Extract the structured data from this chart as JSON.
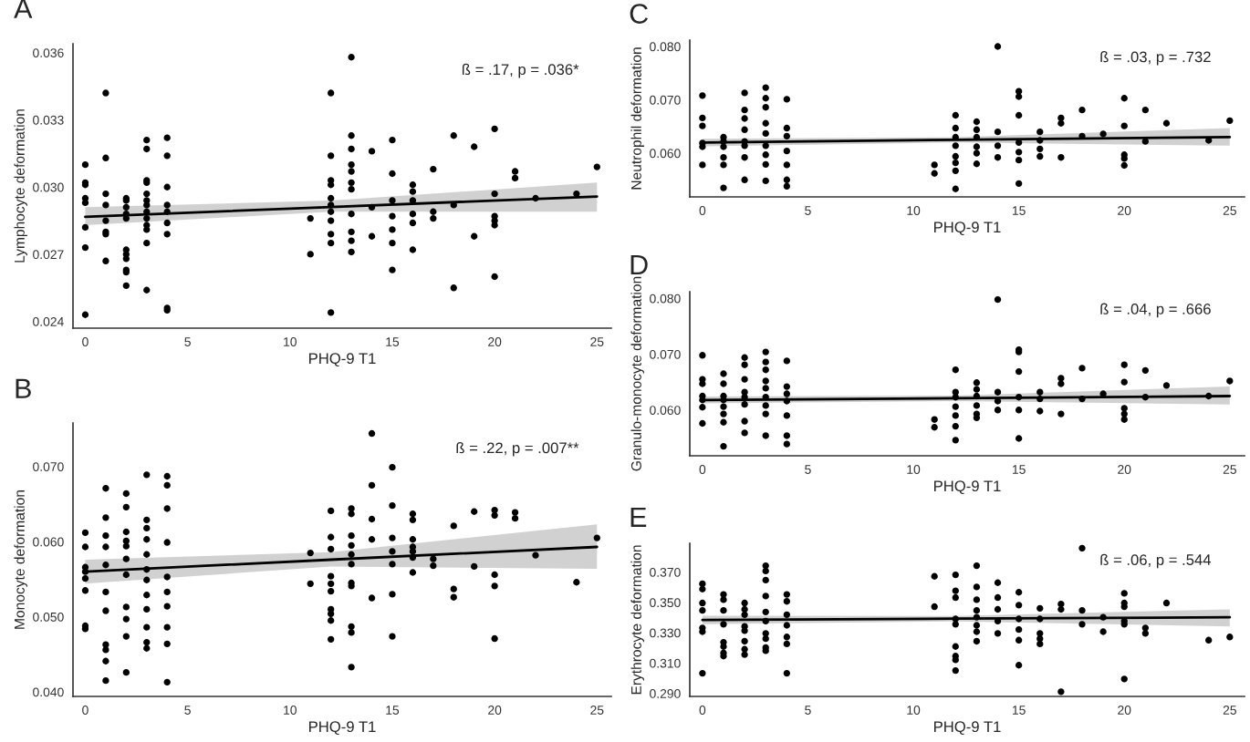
{
  "chart_data": [
    {
      "type": "scatter",
      "title": "A",
      "xlabel": "PHQ-9 T1",
      "ylabel": "Lymphocyte deformation",
      "annotations": [
        "ß = .17, p = .036*"
      ],
      "grid": false,
      "marker": "circle",
      "xlim": [
        -0.6,
        25.7
      ],
      "xticks": [
        0,
        5,
        10,
        15,
        20,
        25
      ],
      "ylim": [
        0.0237,
        0.0364
      ],
      "yticks": [
        {
          "value": 0.024,
          "label": "0.024"
        },
        {
          "value": 0.027,
          "label": "0.027"
        },
        {
          "value": 0.03,
          "label": "0.030"
        },
        {
          "value": 0.033,
          "label": "0.033"
        },
        {
          "value": 0.036,
          "label": "0.036"
        }
      ],
      "series": [
        {
          "color": "#000000",
          "x": [
            0,
            0,
            0,
            0,
            0,
            0,
            0,
            0,
            1,
            1,
            1,
            1,
            1,
            1,
            1,
            1,
            2,
            2,
            2,
            2,
            2,
            2,
            2,
            2,
            2,
            2,
            2,
            3,
            3,
            3,
            3,
            3,
            3,
            3,
            3,
            3,
            3,
            3,
            3,
            3,
            4,
            4,
            4,
            4,
            4,
            4,
            4,
            4,
            4,
            11,
            11,
            12,
            12,
            12,
            12,
            12,
            12,
            12,
            12,
            12,
            12,
            12,
            13,
            13,
            13,
            13,
            13,
            13,
            13,
            13,
            13,
            13,
            13,
            14,
            14,
            14,
            15,
            15,
            15,
            15,
            15,
            15,
            15,
            16,
            16,
            16,
            16,
            16,
            16,
            17,
            17,
            17,
            18,
            18,
            18,
            19,
            19,
            20,
            20,
            20,
            20,
            20,
            20,
            21,
            21,
            22,
            24,
            25
          ],
          "values": [
            0.031,
            0.0302,
            0.0301,
            0.0295,
            0.0293,
            0.0282,
            0.0273,
            0.0243,
            0.0342,
            0.0313,
            0.0297,
            0.0292,
            0.0285,
            0.028,
            0.0279,
            0.0267,
            0.0295,
            0.0294,
            0.0291,
            0.0288,
            0.0286,
            0.0272,
            0.027,
            0.0268,
            0.0263,
            0.0262,
            0.0256,
            0.0321,
            0.0317,
            0.0303,
            0.0302,
            0.0297,
            0.0294,
            0.0292,
            0.0289,
            0.0286,
            0.0283,
            0.0281,
            0.0275,
            0.0254,
            0.0322,
            0.0314,
            0.03,
            0.0292,
            0.0289,
            0.0284,
            0.0279,
            0.0246,
            0.0245,
            0.0286,
            0.027,
            0.0342,
            0.0314,
            0.0303,
            0.0301,
            0.0295,
            0.0292,
            0.0289,
            0.0285,
            0.0279,
            0.0275,
            0.0244,
            0.0358,
            0.0323,
            0.0317,
            0.031,
            0.0307,
            0.0302,
            0.0299,
            0.0288,
            0.028,
            0.0276,
            0.0271,
            0.0316,
            0.0291,
            0.0278,
            0.0321,
            0.0306,
            0.0294,
            0.0287,
            0.0281,
            0.0275,
            0.0263,
            0.0301,
            0.0298,
            0.0294,
            0.0288,
            0.0284,
            0.0272,
            0.0308,
            0.0289,
            0.0286,
            0.0323,
            0.0292,
            0.0255,
            0.0318,
            0.0278,
            0.0326,
            0.0297,
            0.0287,
            0.0285,
            0.0283,
            0.026,
            0.0307,
            0.0304,
            0.0295,
            0.0297,
            0.0309
          ]
        },
        {
          "type": "line",
          "marker": "none",
          "color": "#000000",
          "x": [
            0,
            12,
            25
          ],
          "values": [
            0.02867,
            0.02911,
            0.02958
          ],
          "lower": [
            0.0283,
            0.0289,
            0.0289
          ],
          "upper": [
            0.0291,
            0.0294,
            0.0302
          ]
        }
      ]
    },
    {
      "type": "scatter",
      "title": "B",
      "xlabel": "PHQ-9 T1",
      "ylabel": "Monocyte deformation",
      "annotations": [
        "ß = .22, p = .007**"
      ],
      "grid": false,
      "marker": "circle",
      "xlim": [
        -0.6,
        25.7
      ],
      "xticks": [
        0,
        5,
        10,
        15,
        20,
        25
      ],
      "ylim": [
        0.0394,
        0.0758
      ],
      "yticks": [
        {
          "value": 0.04,
          "label": "0.040"
        },
        {
          "value": 0.05,
          "label": "0.050"
        },
        {
          "value": 0.06,
          "label": "0.060"
        },
        {
          "value": 0.07,
          "label": "0.070"
        }
      ],
      "series": [
        {
          "color": "#000000",
          "x": [
            0,
            0,
            0,
            0,
            0,
            0,
            0,
            0,
            1,
            1,
            1,
            1,
            1,
            1,
            1,
            1,
            1,
            1,
            1,
            2,
            2,
            2,
            2,
            2,
            2,
            2,
            2,
            2,
            2,
            2,
            3,
            3,
            3,
            3,
            3,
            3,
            3,
            3,
            3,
            3,
            3,
            3,
            4,
            4,
            4,
            4,
            4,
            4,
            4,
            4,
            4,
            4,
            11,
            11,
            12,
            12,
            12,
            12,
            12,
            12,
            12,
            12,
            12,
            12,
            13,
            13,
            13,
            13,
            13,
            13,
            13,
            13,
            13,
            13,
            13,
            14,
            14,
            14,
            14,
            14,
            15,
            15,
            15,
            15,
            15,
            15,
            15,
            16,
            16,
            16,
            16,
            16,
            16,
            16,
            17,
            17,
            18,
            18,
            18,
            19,
            19,
            20,
            20,
            20,
            20,
            20,
            21,
            21,
            22,
            24,
            25
          ],
          "values": [
            0.0612,
            0.0593,
            0.0566,
            0.056,
            0.0551,
            0.0535,
            0.0488,
            0.0484,
            0.0671,
            0.0632,
            0.0608,
            0.0593,
            0.0569,
            0.0533,
            0.0508,
            0.0463,
            0.0456,
            0.0441,
            0.0415,
            0.0664,
            0.0646,
            0.0613,
            0.0601,
            0.0594,
            0.0577,
            0.0556,
            0.0513,
            0.0497,
            0.0474,
            0.0426,
            0.0689,
            0.0629,
            0.0618,
            0.0603,
            0.0583,
            0.0563,
            0.0549,
            0.0529,
            0.051,
            0.0486,
            0.0466,
            0.0458,
            0.0687,
            0.0675,
            0.0644,
            0.0599,
            0.0553,
            0.0533,
            0.0514,
            0.0486,
            0.0464,
            0.0413,
            0.0585,
            0.0544,
            0.0641,
            0.0606,
            0.059,
            0.0554,
            0.0544,
            0.0534,
            0.051,
            0.0504,
            0.0495,
            0.047,
            0.0644,
            0.0637,
            0.0608,
            0.0595,
            0.0583,
            0.057,
            0.0545,
            0.0541,
            0.0487,
            0.0479,
            0.0433,
            0.0744,
            0.0675,
            0.063,
            0.0603,
            0.0525,
            0.0699,
            0.0648,
            0.0605,
            0.0587,
            0.057,
            0.053,
            0.0474,
            0.0637,
            0.0629,
            0.0603,
            0.0593,
            0.0587,
            0.0579,
            0.0559,
            0.0577,
            0.0568,
            0.0621,
            0.0537,
            0.0526,
            0.064,
            0.0567,
            0.0642,
            0.0635,
            0.0556,
            0.0541,
            0.0471,
            0.0639,
            0.0631,
            0.0582,
            0.0546,
            0.0605
          ]
        },
        {
          "type": "line",
          "marker": "none",
          "color": "#000000",
          "x": [
            0,
            12,
            25
          ],
          "values": [
            0.056,
            0.0576,
            0.0593
          ],
          "lower": [
            0.0544,
            0.0567,
            0.0564
          ],
          "upper": [
            0.0576,
            0.0586,
            0.0623
          ]
        }
      ]
    },
    {
      "type": "scatter",
      "title": "C",
      "xlabel": "PHQ-9 T1",
      "ylabel": "Neutrophil deformation",
      "annotations": [
        "ß = .03, p = .732"
      ],
      "grid": false,
      "marker": "circle",
      "xlim": [
        -0.6,
        25.7
      ],
      "xticks": [
        0,
        5,
        10,
        15,
        20,
        25
      ],
      "ylim": [
        0.0518,
        0.0812
      ],
      "yticks": [
        {
          "value": 0.06,
          "label": "0.060"
        },
        {
          "value": 0.07,
          "label": "0.070"
        },
        {
          "value": 0.08,
          "label": "0.080"
        }
      ],
      "series": [
        {
          "color": "#000000",
          "x": [
            0,
            0,
            0,
            0,
            0,
            0,
            1,
            1,
            1,
            1,
            1,
            1,
            2,
            2,
            2,
            2,
            2,
            2,
            2,
            2,
            3,
            3,
            3,
            3,
            3,
            3,
            3,
            3,
            3,
            4,
            4,
            4,
            4,
            4,
            4,
            4,
            11,
            11,
            12,
            12,
            12,
            12,
            12,
            12,
            12,
            12,
            13,
            13,
            13,
            13,
            13,
            13,
            14,
            14,
            14,
            14,
            15,
            15,
            15,
            15,
            15,
            15,
            15,
            16,
            16,
            16,
            16,
            17,
            17,
            17,
            18,
            18,
            19,
            20,
            20,
            20,
            20,
            20,
            21,
            21,
            22,
            24,
            25
          ],
          "values": [
            0.0708,
            0.0666,
            0.0651,
            0.0619,
            0.0612,
            0.0578,
            0.063,
            0.0622,
            0.0612,
            0.0592,
            0.0578,
            0.0535,
            0.0713,
            0.0681,
            0.0665,
            0.0644,
            0.0622,
            0.0614,
            0.0592,
            0.055,
            0.0723,
            0.0703,
            0.0686,
            0.0656,
            0.0637,
            0.0614,
            0.0597,
            0.0579,
            0.0548,
            0.0701,
            0.0647,
            0.0632,
            0.0604,
            0.0578,
            0.055,
            0.0538,
            0.0578,
            0.0562,
            0.0671,
            0.0647,
            0.063,
            0.0614,
            0.0594,
            0.0582,
            0.0567,
            0.0533,
            0.0659,
            0.0644,
            0.063,
            0.0612,
            0.06,
            0.058,
            0.08,
            0.064,
            0.0614,
            0.0592,
            0.0716,
            0.0706,
            0.0671,
            0.062,
            0.0602,
            0.0587,
            0.0543,
            0.064,
            0.0624,
            0.0608,
            0.0594,
            0.0666,
            0.0656,
            0.0592,
            0.0681,
            0.0632,
            0.0636,
            0.0703,
            0.0651,
            0.0597,
            0.059,
            0.0577,
            0.0681,
            0.0622,
            0.0656,
            0.0624,
            0.0661
          ]
        },
        {
          "type": "line",
          "marker": "none",
          "color": "#000000",
          "x": [
            0,
            12,
            25
          ],
          "values": [
            0.062,
            0.0625,
            0.063
          ],
          "lower": [
            0.0613,
            0.062,
            0.0614
          ],
          "upper": [
            0.0627,
            0.063,
            0.0647
          ]
        }
      ]
    },
    {
      "type": "scatter",
      "title": "D",
      "xlabel": "PHQ-9 T1",
      "ylabel": "Granulo-monocyte deformation",
      "annotations": [
        "ß = .04, p = .666"
      ],
      "grid": false,
      "marker": "circle",
      "xlim": [
        -0.6,
        25.7
      ],
      "xticks": [
        0,
        5,
        10,
        15,
        20,
        25
      ],
      "ylim": [
        0.0518,
        0.0812
      ],
      "yticks": [
        {
          "value": 0.06,
          "label": "0.060"
        },
        {
          "value": 0.07,
          "label": "0.070"
        },
        {
          "value": 0.08,
          "label": "0.080"
        }
      ],
      "series": [
        {
          "color": "#000000",
          "x": [
            0,
            0,
            0,
            0,
            0,
            0,
            0,
            1,
            1,
            1,
            1,
            1,
            1,
            1,
            1,
            2,
            2,
            2,
            2,
            2,
            2,
            2,
            2,
            3,
            3,
            3,
            3,
            3,
            3,
            3,
            3,
            3,
            4,
            4,
            4,
            4,
            4,
            4,
            4,
            11,
            11,
            12,
            12,
            12,
            12,
            12,
            12,
            12,
            13,
            13,
            13,
            13,
            13,
            13,
            14,
            14,
            14,
            14,
            15,
            15,
            15,
            15,
            15,
            15,
            16,
            16,
            16,
            17,
            17,
            17,
            18,
            18,
            19,
            20,
            20,
            20,
            20,
            20,
            21,
            21,
            22,
            24,
            25
          ],
          "values": [
            0.0698,
            0.0655,
            0.0647,
            0.0625,
            0.0618,
            0.0605,
            0.0576,
            0.0665,
            0.0647,
            0.0625,
            0.0618,
            0.0606,
            0.0593,
            0.0578,
            0.0535,
            0.0694,
            0.0681,
            0.0655,
            0.0632,
            0.0623,
            0.061,
            0.058,
            0.0559,
            0.0704,
            0.0686,
            0.0672,
            0.0652,
            0.0639,
            0.0623,
            0.0608,
            0.0593,
            0.0554,
            0.0688,
            0.0642,
            0.0629,
            0.0616,
            0.059,
            0.0554,
            0.0539,
            0.0583,
            0.0569,
            0.0672,
            0.0632,
            0.0623,
            0.0606,
            0.059,
            0.0571,
            0.0546,
            0.0649,
            0.0637,
            0.0625,
            0.0608,
            0.0593,
            0.0586,
            0.0798,
            0.0632,
            0.0616,
            0.06,
            0.0708,
            0.0704,
            0.0669,
            0.0623,
            0.06,
            0.0549,
            0.0632,
            0.062,
            0.0598,
            0.0657,
            0.0647,
            0.0593,
            0.0675,
            0.062,
            0.0629,
            0.0681,
            0.065,
            0.0603,
            0.0593,
            0.0583,
            0.0671,
            0.0623,
            0.0644,
            0.0625,
            0.0652
          ]
        },
        {
          "type": "line",
          "marker": "none",
          "color": "#000000",
          "x": [
            0,
            12,
            25
          ],
          "values": [
            0.0618,
            0.0621,
            0.0625
          ],
          "lower": [
            0.0612,
            0.0616,
            0.061
          ],
          "upper": [
            0.0624,
            0.0626,
            0.0642
          ]
        }
      ]
    },
    {
      "type": "scatter",
      "title": "E",
      "xlabel": "PHQ-9 T1",
      "ylabel": "Erythrocyte deformation",
      "annotations": [
        "ß = .06, p = .544"
      ],
      "grid": false,
      "marker": "circle",
      "xlim": [
        -0.6,
        25.7
      ],
      "xticks": [
        0,
        5,
        10,
        15,
        20,
        25
      ],
      "ylim": [
        0.288,
        0.389
      ],
      "yticks": [
        {
          "value": 0.29,
          "label": "0.290"
        },
        {
          "value": 0.31,
          "label": "0.310"
        },
        {
          "value": 0.33,
          "label": "0.330"
        },
        {
          "value": 0.35,
          "label": "0.350"
        },
        {
          "value": 0.37,
          "label": "0.370"
        }
      ],
      "series": [
        {
          "color": "#000000",
          "x": [
            0,
            0,
            0,
            0,
            0,
            0,
            0,
            1,
            1,
            1,
            1,
            1,
            1,
            1,
            1,
            2,
            2,
            2,
            2,
            2,
            2,
            2,
            2,
            3,
            3,
            3,
            3,
            3,
            3,
            3,
            3,
            3,
            3,
            4,
            4,
            4,
            4,
            4,
            4,
            4,
            11,
            11,
            12,
            12,
            12,
            12,
            12,
            12,
            12,
            12,
            12,
            13,
            13,
            13,
            13,
            13,
            13,
            13,
            13,
            14,
            14,
            14,
            14,
            14,
            15,
            15,
            15,
            15,
            15,
            15,
            16,
            16,
            16,
            16,
            16,
            17,
            17,
            17,
            18,
            18,
            18,
            19,
            19,
            20,
            20,
            20,
            20,
            20,
            20,
            21,
            21,
            22,
            24,
            25
          ],
          "values": [
            0.3623,
            0.3588,
            0.3496,
            0.3447,
            0.3332,
            0.3307,
            0.3033,
            0.3553,
            0.3518,
            0.3447,
            0.3356,
            0.3237,
            0.3209,
            0.3167,
            0.3146,
            0.3496,
            0.3454,
            0.3419,
            0.3342,
            0.3314,
            0.3244,
            0.3191,
            0.3156,
            0.3742,
            0.3707,
            0.3647,
            0.3542,
            0.3437,
            0.3377,
            0.3296,
            0.3261,
            0.3202,
            0.3181,
            0.3553,
            0.3507,
            0.3419,
            0.3349,
            0.3272,
            0.3226,
            0.3033,
            0.3672,
            0.3472,
            0.3682,
            0.3577,
            0.3532,
            0.3391,
            0.3356,
            0.3209,
            0.3146,
            0.3121,
            0.3051,
            0.3742,
            0.3602,
            0.3518,
            0.3447,
            0.3402,
            0.3349,
            0.3307,
            0.3244,
            0.363,
            0.3532,
            0.3454,
            0.3377,
            0.3296,
            0.3567,
            0.3482,
            0.3391,
            0.3321,
            0.3251,
            0.3086,
            0.3461,
            0.3391,
            0.3296,
            0.3261,
            0.3226,
            0.3489,
            0.3454,
            0.2911,
            0.3858,
            0.3447,
            0.3356,
            0.3402,
            0.3307,
            0.356,
            0.3496,
            0.3472,
            0.3377,
            0.3356,
            0.2995,
            0.3332,
            0.3296,
            0.3496,
            0.3251,
            0.3272
          ]
        },
        {
          "type": "line",
          "marker": "none",
          "color": "#000000",
          "x": [
            0,
            12,
            25
          ],
          "values": [
            0.3384,
            0.3393,
            0.3402
          ],
          "lower": [
            0.3356,
            0.3375,
            0.3342
          ],
          "upper": [
            0.3412,
            0.3411,
            0.3454
          ]
        }
      ]
    }
  ]
}
